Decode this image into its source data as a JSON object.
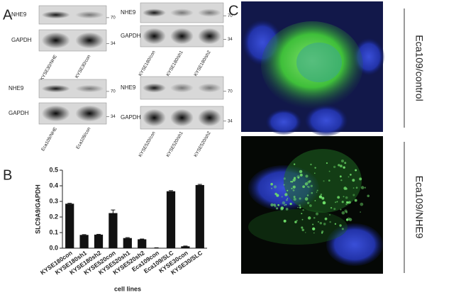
{
  "panel_labels": [
    "A",
    "B",
    "C"
  ],
  "blots": [
    {
      "bands": [
        "NHE9",
        "GAPDH"
      ],
      "markers": [
        70,
        34
      ],
      "lanes": [
        "KYSE30/NHE",
        "KYSE30/con"
      ]
    },
    {
      "bands": [
        "NHE9",
        "GAPDH"
      ],
      "markers": [
        70,
        34
      ],
      "lanes": [
        "Eca109/NHE",
        "Eca109/con"
      ]
    },
    {
      "bands": [
        "NHE9",
        "GAPDH"
      ],
      "markers": [
        70,
        34
      ],
      "lanes": [
        "KYSE180/con",
        "KYSE180/sh1",
        "KYSE180/sh2"
      ]
    },
    {
      "bands": [
        "NHE9",
        "GAPDH"
      ],
      "markers": [
        70,
        34
      ],
      "lanes": [
        "KYSE520/con",
        "KYSE520/sh1",
        "KYSE520/sh2"
      ]
    }
  ],
  "chart_data": {
    "type": "bar",
    "y_label": "SLC9A9/GAPDH",
    "x_label": "cell lines",
    "categories": [
      "KYSE180con",
      "KYSE180sh1",
      "KYSE180sh2",
      "KYSE520con",
      "KYSE520sh1",
      "KYSE520sh2",
      "Eca109con",
      "Eca109/SLC",
      "KYSE30con",
      "KYSE30/SLC"
    ],
    "values": [
      0.285,
      0.085,
      0.087,
      0.225,
      0.065,
      0.057,
      0.002,
      0.365,
      0.012,
      0.405
    ],
    "errors": [
      0.003,
      0.002,
      0.002,
      0.02,
      0.003,
      0.002,
      0.001,
      0.004,
      0.002,
      0.004
    ],
    "color": "#111111",
    "ylim": [
      0,
      0.5
    ],
    "yticks": [
      {
        "value": 0,
        "label": "0.0"
      },
      0.1,
      0.2,
      0.3,
      0.4,
      0.5
    ]
  },
  "images": [
    {
      "label": "Eca109/control"
    },
    {
      "label": "Eca109/NHE9"
    }
  ]
}
